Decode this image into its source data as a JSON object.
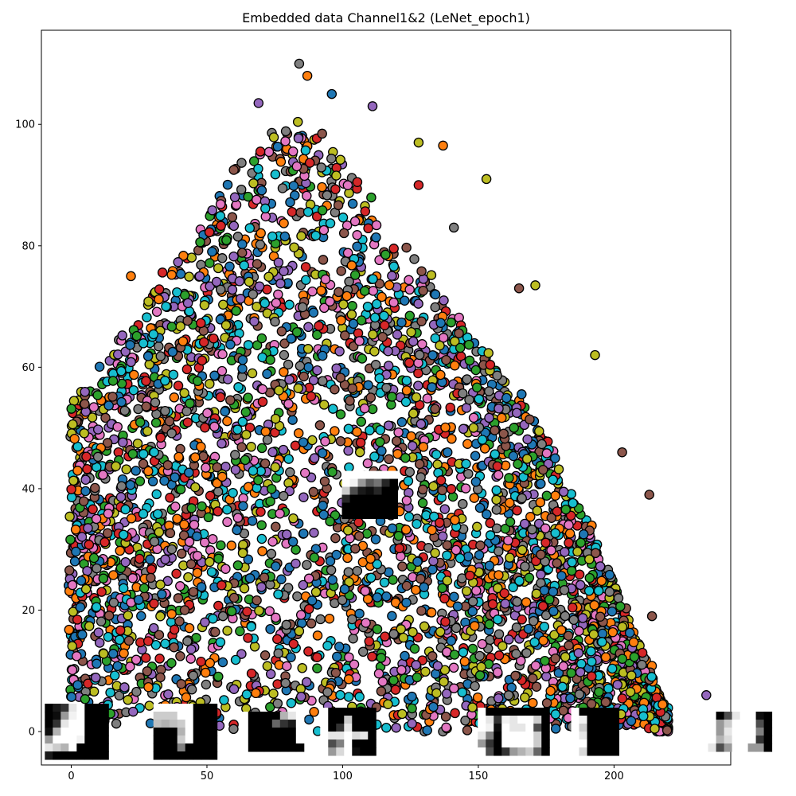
{
  "chart_data": {
    "type": "scatter",
    "title": "Embedded data Channel1&2 (LeNet_epoch1)",
    "xlabel": "",
    "ylabel": "",
    "xlim": [
      -11,
      243
    ],
    "ylim": [
      -5.5,
      115.5
    ],
    "x_ticks": [
      0,
      50,
      100,
      150,
      200
    ],
    "y_ticks": [
      0,
      20,
      40,
      60,
      80,
      100
    ],
    "grid": false,
    "legend": "none",
    "marker": "circle, black edge",
    "palette": [
      "#1f77b4",
      "#ff7f0e",
      "#2ca02c",
      "#d62728",
      "#9467bd",
      "#8c564b",
      "#e377c2",
      "#7f7f7f",
      "#bcbd22",
      "#17becf"
    ],
    "envelope": {
      "description": "dense triangular point cloud; upper boundary of the cloud at sample x positions",
      "x": [
        -1,
        0,
        10,
        20,
        30,
        40,
        50,
        60,
        70,
        80,
        90,
        100,
        110,
        120,
        130,
        140,
        150,
        160,
        170,
        180,
        190,
        200,
        210,
        220
      ],
      "y_max": [
        47,
        54,
        60,
        66,
        73,
        79,
        86,
        92,
        97,
        101,
        100,
        95,
        88,
        82,
        76,
        70,
        64,
        58,
        52,
        44,
        35,
        25,
        14,
        3
      ]
    },
    "outliers": [
      {
        "x": 84,
        "y": 110
      },
      {
        "x": 87,
        "y": 108
      },
      {
        "x": 96,
        "y": 105
      },
      {
        "x": 111,
        "y": 103
      },
      {
        "x": 69,
        "y": 103.5
      },
      {
        "x": 128,
        "y": 97
      },
      {
        "x": 137,
        "y": 96.5
      },
      {
        "x": 153,
        "y": 91
      },
      {
        "x": 165,
        "y": 73
      },
      {
        "x": 171,
        "y": 73.5
      },
      {
        "x": 193,
        "y": 62
      },
      {
        "x": 203,
        "y": 46
      },
      {
        "x": 213,
        "y": 39
      },
      {
        "x": 214,
        "y": 19
      },
      {
        "x": 234,
        "y": 6
      },
      {
        "x": 22,
        "y": 75
      },
      {
        "x": 141,
        "y": 83
      },
      {
        "x": 128,
        "y": 90
      }
    ],
    "thumbnails": [
      {
        "x": 110,
        "y": 39,
        "grid": [
          [
            1,
            1,
            1,
            1,
            1,
            1,
            1
          ],
          [
            1,
            0.95,
            0.6,
            0.35,
            0.45,
            0.15,
            0
          ],
          [
            0.8,
            0.3,
            0.1,
            0.05,
            0.15,
            0,
            0
          ],
          [
            0.15,
            0,
            0,
            0,
            0,
            0,
            0
          ],
          [
            0,
            0,
            0,
            0,
            0,
            0,
            0
          ],
          [
            0,
            0,
            0,
            0,
            0,
            0,
            0
          ]
        ]
      },
      {
        "x": 2,
        "y": 0,
        "grid": [
          [
            0,
            0.1,
            0.2,
            0.9,
            1,
            0,
            0,
            0
          ],
          [
            0,
            0.05,
            0.6,
            0.95,
            1,
            0,
            0,
            0
          ],
          [
            0,
            0.2,
            0.9,
            1,
            1,
            0,
            0,
            0
          ],
          [
            0.05,
            0.7,
            1,
            1,
            1,
            0,
            0,
            0
          ],
          [
            0.6,
            1,
            1,
            1,
            0.95,
            0,
            0,
            0
          ],
          [
            0.9,
            0.8,
            0.7,
            1,
            0,
            0,
            0,
            0
          ],
          [
            0.1,
            0,
            0,
            0,
            0,
            0,
            0,
            0
          ]
        ]
      },
      {
        "x": 42,
        "y": 0,
        "grid": [
          [
            1,
            1,
            1,
            1,
            1,
            0,
            0,
            0
          ],
          [
            0.8,
            0.8,
            0.8,
            1,
            1,
            0,
            0,
            0
          ],
          [
            0.75,
            0.7,
            0.75,
            0.8,
            1,
            0,
            0,
            0
          ],
          [
            0,
            0,
            0,
            0.7,
            1,
            0,
            0,
            0
          ],
          [
            0,
            0,
            0,
            0.8,
            1,
            0,
            0,
            0
          ],
          [
            0,
            0,
            0,
            0.5,
            0,
            0,
            0,
            0
          ],
          [
            0,
            0,
            0,
            0,
            0,
            0,
            0,
            0
          ]
        ]
      },
      {
        "x": 74,
        "y": 0,
        "grid": [
          [
            1,
            0,
            0,
            0,
            0,
            0.7,
            0.9,
            1
          ],
          [
            1,
            0,
            0,
            0,
            0.4,
            0.2,
            0.1,
            1
          ],
          [
            1,
            0,
            0,
            0,
            0,
            0,
            0,
            1
          ],
          [
            1,
            0,
            0,
            0,
            0,
            0,
            0,
            1
          ],
          [
            1,
            0,
            0,
            0,
            0,
            0,
            0,
            0
          ]
        ]
      },
      {
        "x": 102,
        "y": 0,
        "grid": [
          [
            1,
            0,
            0,
            0,
            0,
            0,
            0
          ],
          [
            1,
            0,
            0,
            0.8,
            0,
            0,
            0
          ],
          [
            1,
            0,
            0.2,
            0.9,
            0,
            0,
            0
          ],
          [
            1,
            0.9,
            0.9,
            1,
            0.85,
            0.9,
            0
          ],
          [
            1,
            0.3,
            0.5,
            1,
            0,
            0,
            0
          ],
          [
            1,
            0.6,
            0.85,
            1,
            0.05,
            0,
            0
          ]
        ]
      },
      {
        "x": 163,
        "y": 0,
        "grid": [
          [
            1,
            0,
            0,
            0,
            0,
            0,
            0,
            0,
            0
          ],
          [
            1,
            0.9,
            0.2,
            0.95,
            0.9,
            1,
            1,
            0.8,
            0
          ],
          [
            1,
            0.95,
            0.05,
            1,
            0.9,
            0.9,
            1,
            0.3,
            0
          ],
          [
            0.9,
            0.5,
            0,
            1,
            1,
            1,
            1,
            0.8,
            0
          ],
          [
            0.6,
            0.2,
            0,
            1,
            1,
            1,
            1,
            0.8,
            0
          ],
          [
            1,
            0.3,
            0,
            0.2,
            0.6,
            0.7,
            0.8,
            0.4,
            0
          ]
        ]
      },
      {
        "x": 193,
        "y": 0,
        "grid": [
          [
            1,
            0,
            0,
            0,
            0,
            0
          ],
          [
            1,
            0.95,
            0,
            0,
            0,
            0
          ],
          [
            1,
            0.8,
            0,
            0,
            0,
            0
          ],
          [
            1,
            0.9,
            0,
            0,
            0,
            0
          ],
          [
            1,
            1,
            0,
            0,
            0,
            0
          ],
          [
            1,
            0.85,
            0,
            0,
            0,
            0
          ]
        ]
      },
      {
        "x": 242,
        "y": 0,
        "grid": [
          [
            1,
            1,
            1,
            1,
            0,
            0.3,
            0.9,
            1,
            1,
            0.05,
            0
          ],
          [
            1,
            1,
            1,
            1,
            0.6,
            0.8,
            1,
            1,
            1,
            0.3,
            0
          ],
          [
            1,
            1,
            1,
            1,
            0.6,
            0.9,
            1,
            1,
            1,
            0.5,
            0
          ],
          [
            1,
            1,
            1,
            1,
            0.7,
            0.85,
            1,
            1,
            1,
            0.2,
            0
          ],
          [
            1,
            1,
            1,
            0.9,
            0.3,
            0.6,
            1,
            1,
            0.6,
            0.6,
            0
          ]
        ]
      }
    ]
  }
}
